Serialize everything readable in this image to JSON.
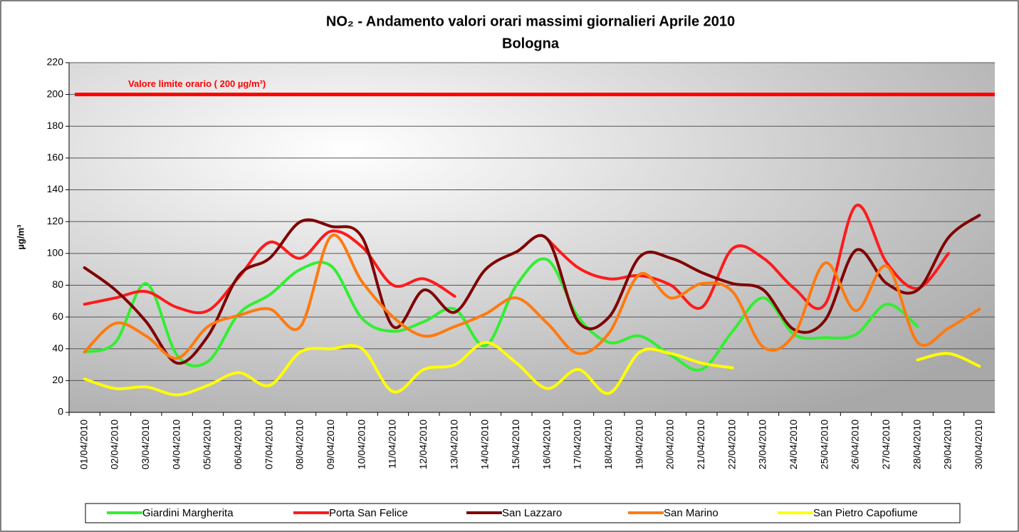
{
  "chart_data": {
    "type": "line",
    "title": "NO₂ - Andamento valori orari massimi giornalieri Aprile 2010",
    "subtitle": "Bologna",
    "y_label": "µg/m³",
    "limit_line": {
      "label": "Valore limite orario ( 200 µg/m³)",
      "value": 200,
      "color": "#ff0000"
    },
    "categories": [
      "01/04/2010",
      "02/04/2010",
      "03/04/2010",
      "04/04/2010",
      "05/04/2010",
      "06/04/2010",
      "07/04/2010",
      "08/04/2010",
      "09/04/2010",
      "10/04/2010",
      "11/04/2010",
      "12/04/2010",
      "13/04/2010",
      "14/04/2010",
      "15/04/2010",
      "16/04/2010",
      "17/04/2010",
      "18/04/2010",
      "19/04/2010",
      "20/04/2010",
      "21/04/2010",
      "22/04/2010",
      "23/04/2010",
      "24/04/2010",
      "25/04/2010",
      "26/04/2010",
      "27/04/2010",
      "28/04/2010",
      "29/04/2010",
      "30/04/2010"
    ],
    "series": [
      {
        "name": "Giardini Margherita",
        "color": "#33ee33",
        "values": [
          38,
          44,
          81,
          36,
          32,
          62,
          74,
          90,
          92,
          59,
          51,
          57,
          65,
          42,
          80,
          96,
          60,
          44,
          48,
          36,
          27,
          51,
          72,
          49,
          47,
          49,
          68,
          54,
          null,
          null
        ]
      },
      {
        "name": "Porta San Felice",
        "color": "#ff1a1a",
        "values": [
          68,
          72,
          76,
          66,
          64,
          85,
          107,
          97,
          114,
          104,
          80,
          84,
          73,
          null,
          null,
          109,
          91,
          84,
          86,
          80,
          66,
          103,
          97,
          78,
          68,
          130,
          94,
          78,
          100,
          null
        ]
      },
      {
        "name": "San Lazzaro",
        "color": "#800000",
        "values": [
          91,
          77,
          57,
          31,
          48,
          86,
          97,
          120,
          117,
          110,
          54,
          77,
          63,
          90,
          101,
          109,
          57,
          60,
          98,
          97,
          88,
          81,
          77,
          52,
          58,
          102,
          81,
          77,
          110,
          124
        ]
      },
      {
        "name": "San Marino",
        "color": "#ff7a10",
        "values": [
          38,
          56,
          48,
          34,
          54,
          61,
          65,
          54,
          111,
          82,
          60,
          48,
          54,
          62,
          72,
          56,
          37,
          50,
          87,
          72,
          81,
          76,
          41,
          49,
          94,
          64,
          92,
          44,
          53,
          65
        ]
      },
      {
        "name": "San Pietro Capofiume",
        "color": "#ffff00",
        "values": [
          21,
          15,
          16,
          11,
          17,
          25,
          17,
          38,
          40,
          40,
          13,
          27,
          30,
          44,
          31,
          15,
          27,
          12,
          38,
          37,
          31,
          28,
          null,
          null,
          null,
          null,
          null,
          33,
          37,
          29
        ]
      }
    ],
    "ylim": [
      0,
      220
    ],
    "yticks": [
      0,
      20,
      40,
      60,
      80,
      100,
      120,
      140,
      160,
      180,
      200,
      220
    ],
    "grid": true
  }
}
